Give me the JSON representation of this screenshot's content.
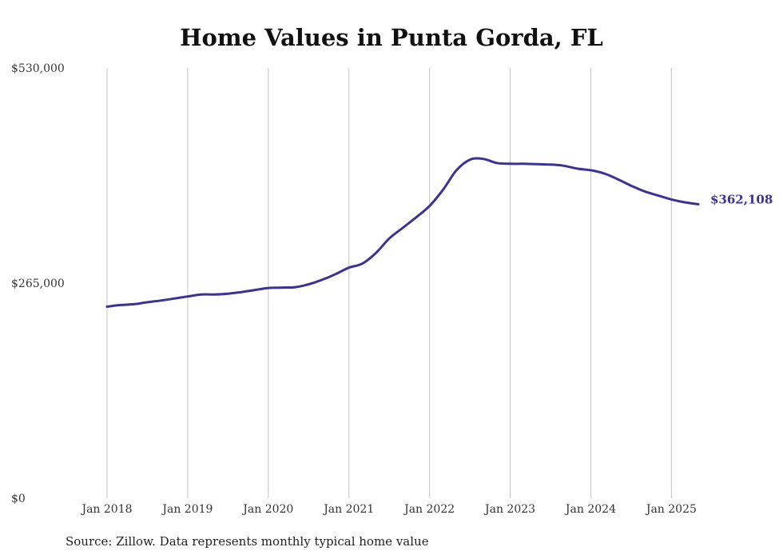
{
  "chart_data": {
    "type": "line",
    "title": "Home Values in Punta Gorda, FL",
    "source": "Source: Zillow. Data represents monthly typical home value",
    "y_ticks": [
      {
        "value": 0,
        "label": "$0"
      },
      {
        "value": 265000,
        "label": "$265,000"
      },
      {
        "value": 530000,
        "label": "$530,000"
      }
    ],
    "ylim": [
      0,
      530000
    ],
    "x_ticks": [
      {
        "value": "2018-01",
        "label": "Jan 2018"
      },
      {
        "value": "2019-01",
        "label": "Jan 2019"
      },
      {
        "value": "2020-01",
        "label": "Jan 2020"
      },
      {
        "value": "2021-01",
        "label": "Jan 2021"
      },
      {
        "value": "2022-01",
        "label": "Jan 2022"
      },
      {
        "value": "2023-01",
        "label": "Jan 2023"
      },
      {
        "value": "2024-01",
        "label": "Jan 2024"
      },
      {
        "value": "2025-01",
        "label": "Jan 2025"
      }
    ],
    "xlim": [
      "2018-01",
      "2025-05"
    ],
    "grid": "vertical",
    "line_color": "#3b3295",
    "end_label": "$362,108",
    "series": [
      {
        "x": [
          "2018-01",
          "2018-03",
          "2018-05",
          "2018-07",
          "2018-09",
          "2018-11",
          "2019-01",
          "2019-03",
          "2019-05",
          "2019-07",
          "2019-09",
          "2019-11",
          "2020-01",
          "2020-03",
          "2020-05",
          "2020-07",
          "2020-09",
          "2020-11",
          "2021-01",
          "2021-03",
          "2021-05",
          "2021-07",
          "2021-09",
          "2021-11",
          "2022-01",
          "2022-03",
          "2022-05",
          "2022-07",
          "2022-09",
          "2022-11",
          "2023-01",
          "2023-03",
          "2023-05",
          "2023-07",
          "2023-09",
          "2023-11",
          "2024-01",
          "2024-03",
          "2024-05",
          "2024-07",
          "2024-09",
          "2024-11",
          "2025-01",
          "2025-03",
          "2025-05"
        ],
        "values": [
          236000,
          238000,
          239000,
          241500,
          243500,
          246000,
          248500,
          251000,
          251000,
          252000,
          254000,
          256500,
          259000,
          259500,
          260000,
          263500,
          269000,
          276000,
          284000,
          289000,
          302000,
          320000,
          333000,
          346000,
          360000,
          380000,
          404000,
          417000,
          418000,
          413000,
          412000,
          412000,
          411500,
          411000,
          409500,
          406000,
          404000,
          400000,
          393000,
          385000,
          378000,
          373000,
          368000,
          364500,
          362108
        ]
      }
    ]
  }
}
